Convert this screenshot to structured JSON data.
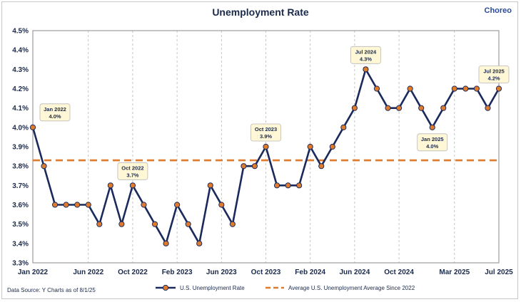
{
  "chart_data": {
    "type": "line",
    "title": "Unemployment Rate",
    "brand": "Choreo",
    "source": "Data Source: Y Charts as of 8/1/25",
    "y_ticks": [
      "4.5%",
      "4.4%",
      "4.3%",
      "4.2%",
      "4.1%",
      "4.0%",
      "3.9%",
      "3.8%",
      "3.7%",
      "3.6%",
      "3.5%",
      "3.4%",
      "3.3%"
    ],
    "x_ticks": [
      "Jan 2022",
      "Jun 2022",
      "Oct 2022",
      "Feb 2023",
      "Jun 2023",
      "Oct 2023",
      "Feb 2024",
      "Jun 2024",
      "Oct 2024",
      "Mar 2025",
      "Jul 2025"
    ],
    "ylim": [
      3.3,
      4.5
    ],
    "grid": "vertical-dashed",
    "legend_position": "bottom",
    "series": [
      {
        "name": "U.S. Unemployment Rate",
        "color": "#1b2a5c",
        "marker_color": "#e07b2c",
        "x": [
          "Jan 2022",
          "Feb 2022",
          "Mar 2022",
          "Apr 2022",
          "May 2022",
          "Jun 2022",
          "Jul 2022",
          "Aug 2022",
          "Sep 2022",
          "Oct 2022",
          "Nov 2022",
          "Dec 2022",
          "Jan 2023",
          "Feb 2023",
          "Mar 2023",
          "Apr 2023",
          "May 2023",
          "Jun 2023",
          "Jul 2023",
          "Aug 2023",
          "Sep 2023",
          "Oct 2023",
          "Nov 2023",
          "Dec 2023",
          "Jan 2024",
          "Feb 2024",
          "Mar 2024",
          "Apr 2024",
          "May 2024",
          "Jun 2024",
          "Jul 2024",
          "Aug 2024",
          "Sep 2024",
          "Oct 2024",
          "Nov 2024",
          "Dec 2024",
          "Jan 2025",
          "Feb 2025",
          "Mar 2025",
          "Apr 2025",
          "May 2025",
          "Jun 2025",
          "Jul 2025"
        ],
        "values": [
          4.0,
          3.8,
          3.6,
          3.6,
          3.6,
          3.6,
          3.5,
          3.7,
          3.5,
          3.7,
          3.6,
          3.5,
          3.4,
          3.6,
          3.5,
          3.4,
          3.7,
          3.6,
          3.5,
          3.8,
          3.8,
          3.9,
          3.7,
          3.7,
          3.7,
          3.9,
          3.8,
          3.9,
          4.0,
          4.1,
          4.3,
          4.2,
          4.1,
          4.1,
          4.2,
          4.1,
          4.0,
          4.1,
          4.2,
          4.2,
          4.2,
          4.1,
          4.2
        ]
      },
      {
        "name": "Average U.S. Unemployment Average Since 2022",
        "color": "#e07b2c",
        "value": 3.83
      }
    ],
    "annotations": [
      {
        "label": "Jan 2022",
        "value": "4.0%",
        "index": 0,
        "side": "right"
      },
      {
        "label": "Oct 2022",
        "value": "3.7%",
        "index": 9,
        "side": "up"
      },
      {
        "label": "Oct 2023",
        "value": "3.9%",
        "index": 21,
        "side": "up"
      },
      {
        "label": "Jul 2024",
        "value": "4.3%",
        "index": 30,
        "side": "up"
      },
      {
        "label": "Jan 2025",
        "value": "4.0%",
        "index": 36,
        "side": "down"
      },
      {
        "label": "Jul 2025",
        "value": "4.2%",
        "index": 42,
        "side": "up"
      }
    ]
  }
}
